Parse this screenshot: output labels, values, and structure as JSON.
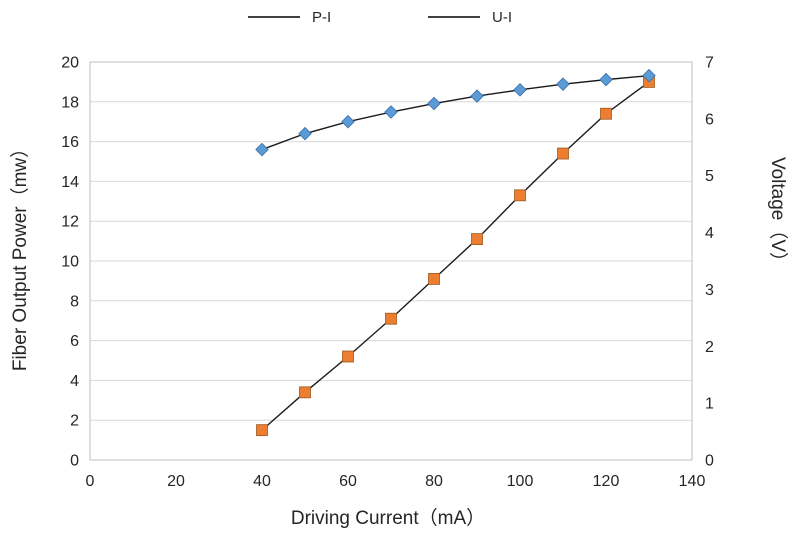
{
  "legend": {
    "items": [
      {
        "label": "P-I",
        "line_color": "#000000"
      },
      {
        "label": "U-I",
        "line_color": "#000000"
      }
    ]
  },
  "chart_data": {
    "type": "line",
    "title": "",
    "xlabel": "Driving Current（mA）",
    "ylabel_left": "Fiber Output Power（mw）",
    "ylabel_right": "Voltage（V）",
    "x": [
      40,
      50,
      60,
      70,
      80,
      90,
      100,
      110,
      120,
      130
    ],
    "series": [
      {
        "name": "P-I",
        "axis": "left",
        "marker": "square",
        "marker_color": "#ED7D31",
        "marker_edge": "#9c5a20",
        "line_color": "#1a1a1a",
        "values": [
          1.5,
          3.4,
          5.2,
          7.1,
          9.1,
          11.1,
          13.3,
          15.4,
          17.4,
          19.0
        ]
      },
      {
        "name": "U-I",
        "axis": "right",
        "marker": "diamond",
        "marker_color": "#5B9BD5",
        "marker_edge": "#3a6ea5",
        "line_color": "#1a1a1a",
        "values": [
          5.46,
          5.74,
          5.95,
          6.12,
          6.27,
          6.4,
          6.51,
          6.61,
          6.69,
          6.76
        ]
      }
    ],
    "xlim": [
      0,
      140
    ],
    "xticks": [
      0,
      20,
      40,
      60,
      80,
      100,
      120,
      140
    ],
    "ylim_left": [
      0,
      20
    ],
    "yticks_left": [
      0,
      2,
      4,
      6,
      8,
      10,
      12,
      14,
      16,
      18,
      20
    ],
    "ylim_right": [
      0,
      7
    ],
    "yticks_right": [
      0,
      1,
      2,
      3,
      4,
      5,
      6,
      7
    ],
    "grid": "horizontal",
    "grid_color": "#D9D9D9",
    "border_color": "#BFBFBF",
    "legend_position": "top"
  }
}
